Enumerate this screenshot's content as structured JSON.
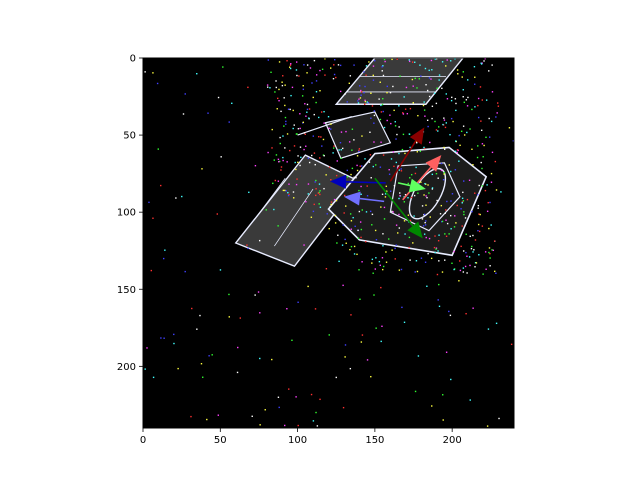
{
  "chart_data": {
    "type": "image",
    "title": "",
    "xlabel": "",
    "ylabel": "",
    "xlim": [
      0,
      240
    ],
    "ylim": [
      240,
      0
    ],
    "x_ticks": [
      0,
      50,
      100,
      150,
      200
    ],
    "x_tick_labels": [
      "0",
      "50",
      "100",
      "150",
      "200"
    ],
    "y_ticks": [
      0,
      50,
      100,
      150,
      200
    ],
    "y_tick_labels": [
      "0",
      "50",
      "100",
      "150",
      "200"
    ],
    "grid": false,
    "legend": "none",
    "background_color": "#000000",
    "outline_color": "#e8ecff",
    "image_content": "satellite",
    "pose_axes_arrows": [
      {
        "name": "dark-red",
        "color": "#8b0000",
        "from": [
          160,
          80
        ],
        "to": [
          182,
          45
        ]
      },
      {
        "name": "light-red",
        "color": "#ff6060",
        "from": [
          168,
          92
        ],
        "to": [
          193,
          63
        ]
      },
      {
        "name": "dark-blue",
        "color": "#0000bb",
        "from": [
          157,
          81
        ],
        "to": [
          121,
          80
        ]
      },
      {
        "name": "light-blue",
        "color": "#7070ff",
        "from": [
          156,
          93
        ],
        "to": [
          130,
          90
        ]
      },
      {
        "name": "dark-green",
        "color": "#008800",
        "from": [
          150,
          78
        ],
        "to": [
          181,
          117
        ]
      },
      {
        "name": "light-green",
        "color": "#60ff60",
        "from": [
          165,
          81
        ],
        "to": [
          183,
          85
        ]
      }
    ]
  }
}
